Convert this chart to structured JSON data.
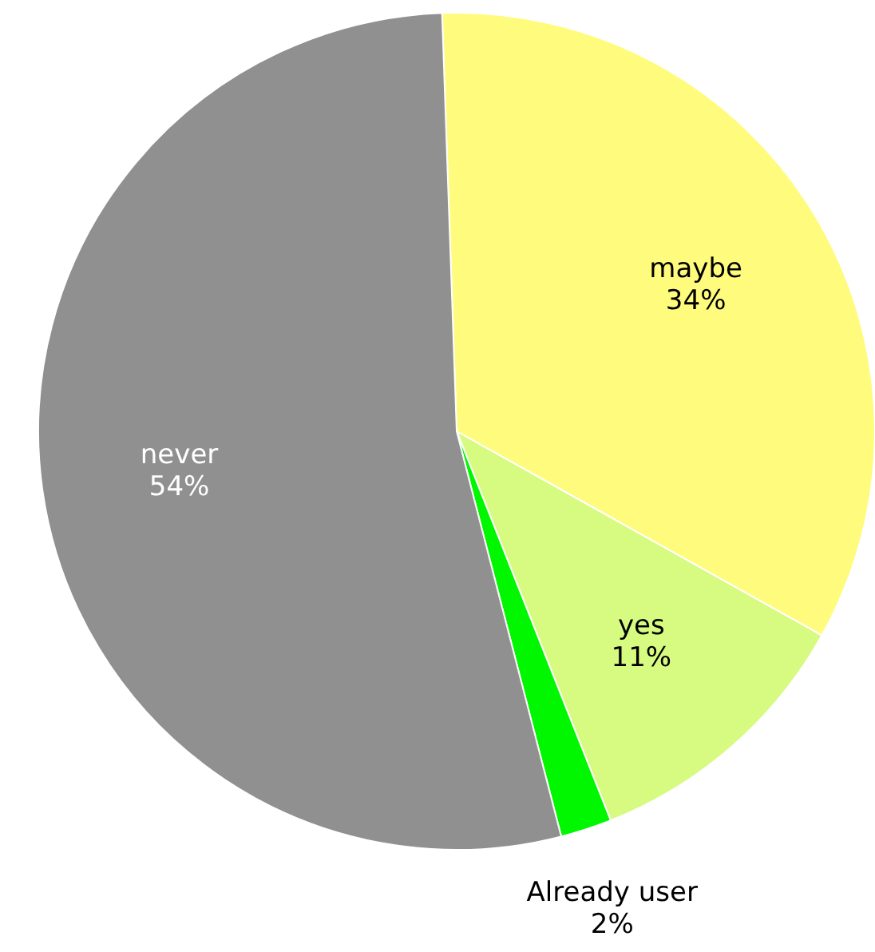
{
  "chart_data": {
    "type": "pie",
    "categories": [
      "maybe",
      "yes",
      "Already user",
      "never"
    ],
    "values": [
      34,
      11,
      2,
      54
    ],
    "value_labels": [
      "34%",
      "11%",
      "2%",
      "54%"
    ],
    "colors": [
      "#fffb7d",
      "#d7fb81",
      "#00f700",
      "#909090"
    ]
  }
}
